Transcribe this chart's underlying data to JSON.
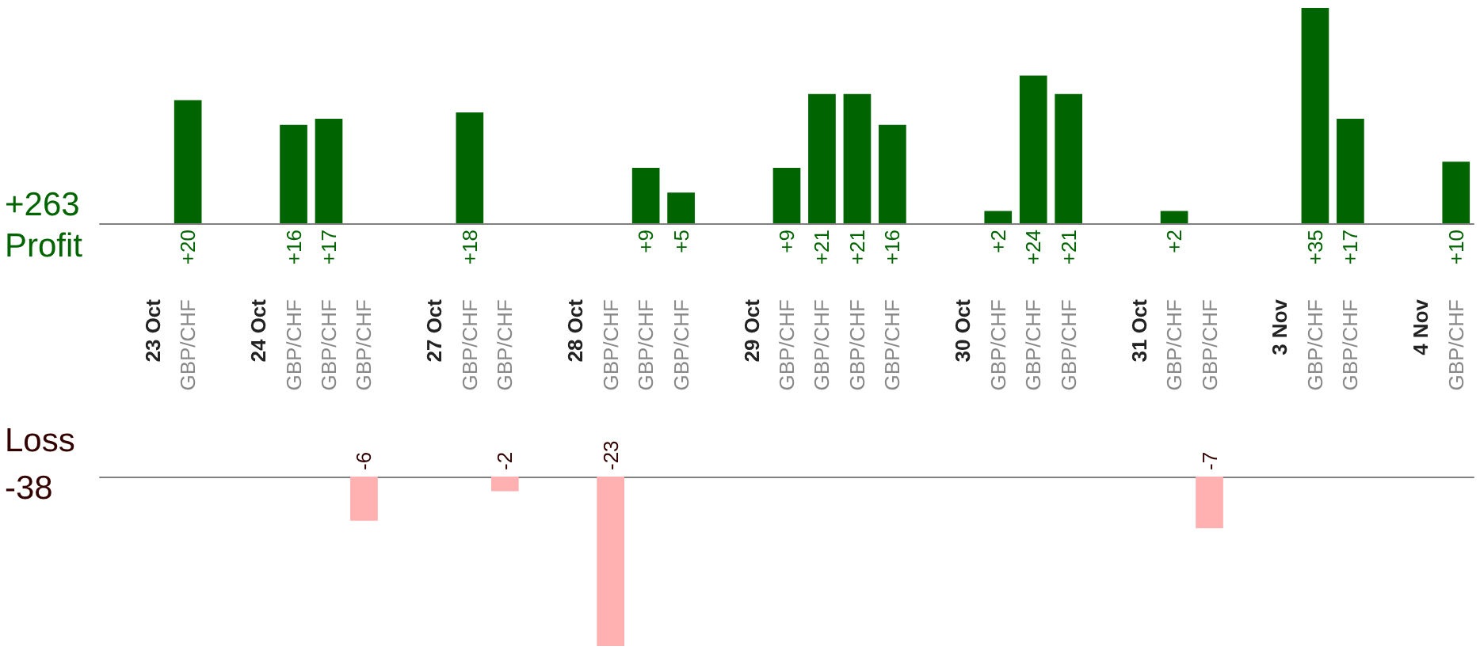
{
  "chart_data": [
    {
      "type": "bar",
      "categories": [
        null,
        "23 Oct",
        "GBP/CHF",
        null,
        "24 Oct",
        "GBP/CHF",
        "GBP/CHF",
        "GBP/CHF",
        null,
        "27 Oct",
        "GBP/CHF",
        "GBP/CHF",
        null,
        "28 Oct",
        "GBP/CHF",
        "GBP/CHF",
        "GBP/CHF",
        null,
        "29 Oct",
        "GBP/CHF",
        "GBP/CHF",
        "GBP/CHF",
        "GBP/CHF",
        null,
        "30 Oct",
        "GBP/CHF",
        "GBP/CHF",
        "GBP/CHF",
        null,
        "31 Oct",
        "GBP/CHF",
        "GBP/CHF",
        null,
        "3 Nov",
        "GBP/CHF",
        "GBP/CHF",
        null,
        "4 Nov",
        "GBP/CHF"
      ],
      "series": [
        {
          "color": "#006400",
          "values": [
            null,
            null,
            20,
            null,
            null,
            16,
            17,
            null,
            null,
            null,
            18,
            null,
            null,
            null,
            null,
            9,
            5,
            null,
            null,
            9,
            21,
            21,
            16,
            null,
            null,
            2,
            24,
            21,
            null,
            null,
            2,
            null,
            null,
            null,
            35,
            17,
            null,
            null,
            10
          ],
          "value_labels": [
            null,
            null,
            "+20",
            null,
            null,
            "+16",
            "+17",
            null,
            null,
            null,
            "+18",
            null,
            null,
            null,
            null,
            "+9",
            "+5",
            null,
            null,
            "+9",
            "+21",
            "+21",
            "+16",
            null,
            null,
            "+2",
            "+24",
            "+21",
            null,
            null,
            "+2",
            null,
            null,
            null,
            "+35",
            "+17",
            null,
            null,
            "+10"
          ]
        }
      ],
      "annotations": [
        "+263",
        "Profit"
      ]
    },
    {
      "type": "bar",
      "categories": [
        null,
        null,
        null,
        null,
        null,
        null,
        null,
        null,
        null,
        null,
        null,
        null,
        null,
        null,
        null,
        null,
        null,
        null,
        null,
        null,
        null,
        null,
        null,
        null,
        null,
        null,
        null,
        null,
        null,
        null,
        null,
        null,
        null,
        null,
        null,
        null,
        null,
        null,
        null
      ],
      "series": [
        {
          "color": "#ffb0b0",
          "values": [
            null,
            null,
            null,
            null,
            null,
            null,
            null,
            -6,
            null,
            null,
            null,
            -2,
            null,
            null,
            -23,
            null,
            null,
            null,
            null,
            null,
            null,
            null,
            null,
            null,
            null,
            null,
            null,
            null,
            null,
            null,
            null,
            -7,
            null,
            null,
            null,
            null,
            null,
            null,
            null
          ],
          "value_labels": [
            null,
            null,
            null,
            null,
            null,
            null,
            null,
            "-6",
            null,
            null,
            null,
            "-2",
            null,
            null,
            "-23",
            null,
            null,
            null,
            null,
            null,
            null,
            null,
            null,
            null,
            null,
            null,
            null,
            null,
            null,
            null,
            null,
            "-7",
            null,
            null,
            null,
            null,
            null,
            null,
            null
          ]
        }
      ],
      "annotations": [
        "Loss",
        "-38"
      ]
    }
  ]
}
